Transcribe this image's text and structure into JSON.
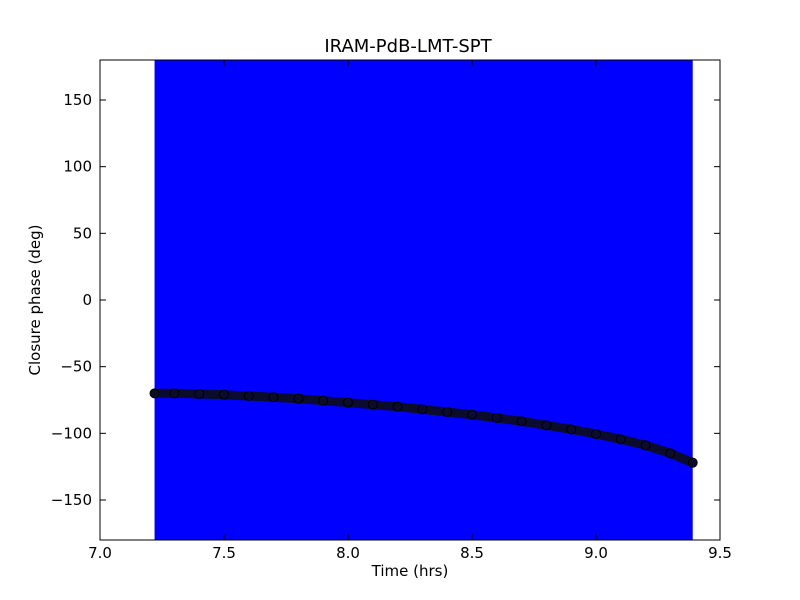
{
  "chart_data": {
    "type": "scatter",
    "title": "IRAM-PdB-LMT-SPT",
    "xlabel": "Time (hrs)",
    "ylabel": "Closure phase (deg)",
    "xlim": [
      7.0,
      9.5
    ],
    "ylim": [
      -180,
      180
    ],
    "xticks": [
      7.0,
      7.5,
      8.0,
      8.5,
      9.0,
      9.5
    ],
    "xtick_labels": [
      "7.0",
      "7.5",
      "8.0",
      "8.5",
      "9.0",
      "9.5"
    ],
    "yticks": [
      -150,
      -100,
      -50,
      0,
      50,
      100,
      150
    ],
    "ytick_labels": [
      "−150",
      "−100",
      "−50",
      "0",
      "50",
      "100",
      "150"
    ],
    "grid": false,
    "error_band": {
      "x_range": [
        7.22,
        9.39
      ],
      "color": "#0000ff"
    },
    "series": [
      {
        "color": "#0b0b2e",
        "x": [
          7.22,
          7.3,
          7.4,
          7.5,
          7.6,
          7.7,
          7.8,
          7.9,
          8.0,
          8.1,
          8.2,
          8.3,
          8.4,
          8.5,
          8.6,
          8.7,
          8.8,
          8.9,
          9.0,
          9.1,
          9.2,
          9.3,
          9.39
        ],
        "y": [
          -70,
          -70,
          -70.5,
          -71,
          -72,
          -73,
          -74,
          -75.5,
          -77,
          -78.5,
          -80,
          -82,
          -84,
          -86,
          -88.5,
          -91,
          -94,
          -97,
          -100.5,
          -104.5,
          -109,
          -115,
          -122
        ]
      }
    ]
  }
}
